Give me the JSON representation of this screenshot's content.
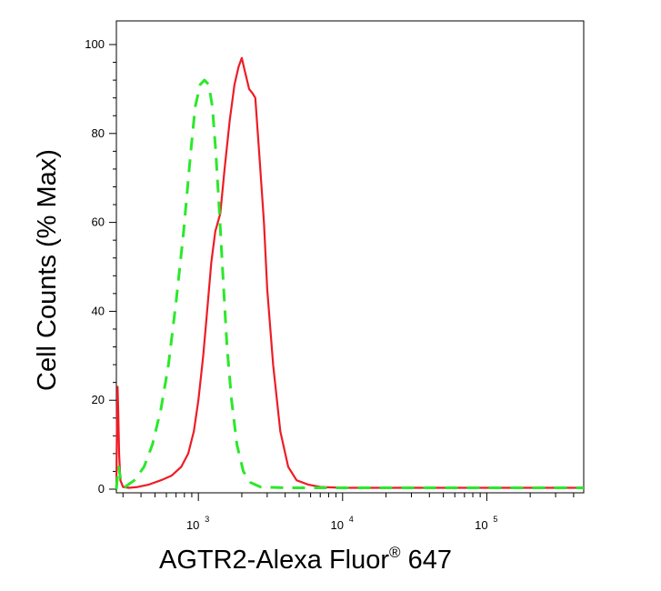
{
  "chart_data": {
    "type": "line",
    "title": "",
    "xlabel": {
      "main": "AGTR2-Alexa Fluor",
      "sup": "®",
      "tail": " 647"
    },
    "ylabel": "Cell Counts (% Max)",
    "x_scale": "log",
    "xlim": [
      270,
      470000
    ],
    "ylim": [
      0,
      100
    ],
    "yticks": [
      0,
      20,
      40,
      60,
      80,
      100
    ],
    "ytick_labels": [
      "0",
      "20",
      "40",
      "60",
      "80",
      "100"
    ],
    "xticks": [
      {
        "value": 1000,
        "base": "10",
        "exp": "3"
      },
      {
        "value": 10000,
        "base": "10",
        "exp": "4"
      },
      {
        "value": 100000,
        "base": "10",
        "exp": "5"
      }
    ],
    "grid": false,
    "legend": "none",
    "series": [
      {
        "color": "#ee1c25",
        "style": "solid",
        "points": [
          [
            270,
            0
          ],
          [
            272,
            12
          ],
          [
            275,
            23
          ],
          [
            278,
            18
          ],
          [
            282,
            8
          ],
          [
            288,
            2
          ],
          [
            300,
            0.5
          ],
          [
            330,
            0.3
          ],
          [
            380,
            0.5
          ],
          [
            450,
            1
          ],
          [
            550,
            2
          ],
          [
            650,
            3
          ],
          [
            760,
            5
          ],
          [
            850,
            8
          ],
          [
            930,
            13
          ],
          [
            1000,
            20
          ],
          [
            1080,
            30
          ],
          [
            1150,
            40
          ],
          [
            1230,
            51
          ],
          [
            1310,
            58
          ],
          [
            1420,
            62
          ],
          [
            1520,
            72
          ],
          [
            1650,
            83
          ],
          [
            1780,
            91
          ],
          [
            1900,
            95
          ],
          [
            2000,
            97
          ],
          [
            2100,
            94
          ],
          [
            2250,
            90
          ],
          [
            2380,
            89
          ],
          [
            2480,
            88
          ],
          [
            2650,
            75
          ],
          [
            2850,
            60
          ],
          [
            3000,
            45
          ],
          [
            3300,
            28
          ],
          [
            3700,
            13
          ],
          [
            4200,
            5
          ],
          [
            4800,
            2
          ],
          [
            5800,
            1
          ],
          [
            7000,
            0.5
          ],
          [
            10000,
            0.3
          ],
          [
            30000,
            0.3
          ],
          [
            100000,
            0.3
          ],
          [
            470000,
            0.3
          ]
        ]
      },
      {
        "color": "#2be82b",
        "style": "dashed",
        "points": [
          [
            270,
            0
          ],
          [
            275,
            3
          ],
          [
            280,
            5
          ],
          [
            290,
            2
          ],
          [
            310,
            0.5
          ],
          [
            360,
            2
          ],
          [
            420,
            5
          ],
          [
            480,
            10
          ],
          [
            550,
            18
          ],
          [
            620,
            28
          ],
          [
            700,
            42
          ],
          [
            790,
            58
          ],
          [
            880,
            75
          ],
          [
            950,
            86
          ],
          [
            1030,
            91
          ],
          [
            1100,
            92
          ],
          [
            1180,
            91
          ],
          [
            1250,
            86
          ],
          [
            1320,
            76
          ],
          [
            1400,
            62
          ],
          [
            1480,
            48
          ],
          [
            1580,
            32
          ],
          [
            1700,
            20
          ],
          [
            1850,
            10
          ],
          [
            2050,
            4
          ],
          [
            2300,
            1.5
          ],
          [
            2700,
            0.5
          ],
          [
            4000,
            0.3
          ],
          [
            10000,
            0.3
          ],
          [
            100000,
            0.3
          ],
          [
            470000,
            0.3
          ]
        ]
      }
    ]
  }
}
